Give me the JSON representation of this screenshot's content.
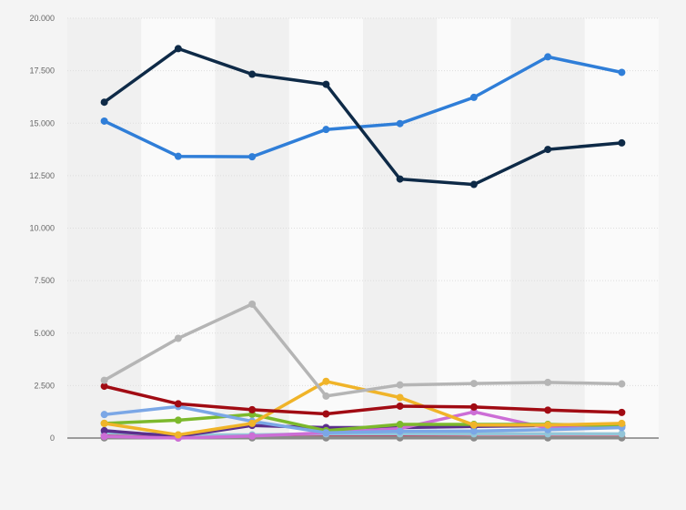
{
  "chart_data": {
    "type": "line",
    "title": "",
    "xlabel": "",
    "ylabel": "",
    "ylim": [
      0,
      20000
    ],
    "y_ticks": [
      0,
      2500,
      5000,
      7500,
      10000,
      12500,
      15000,
      17500,
      20000
    ],
    "y_tick_labels": [
      "0",
      "2.500",
      "5.000",
      "7.500",
      "10.000",
      "12.500",
      "15.000",
      "17.500",
      "20.000"
    ],
    "x_tick_labels": [
      "",
      "",
      "",
      "",
      "",
      "",
      "",
      ""
    ],
    "grid": true,
    "legend": "none",
    "background_bands": true,
    "series": [
      {
        "color": "#0e2a47",
        "values": [
          16000,
          18550,
          17330,
          16850,
          12340,
          12080,
          13750,
          14060
        ]
      },
      {
        "color": "#2f7ed8",
        "values": [
          15100,
          13420,
          13400,
          14700,
          14980,
          16230,
          18160,
          17420
        ]
      },
      {
        "color": "#b5b5b5",
        "values": [
          2750,
          4750,
          6380,
          2000,
          2530,
          2600,
          2650,
          2580
        ]
      },
      {
        "color": "#a10b13",
        "values": [
          2470,
          1630,
          1350,
          1150,
          1520,
          1480,
          1330,
          1220
        ]
      },
      {
        "color": "#f0b429",
        "values": [
          700,
          150,
          700,
          2700,
          1930,
          620,
          620,
          700
        ]
      },
      {
        "color": "#7ba7e6",
        "values": [
          1120,
          1500,
          800,
          250,
          320,
          330,
          400,
          500
        ]
      },
      {
        "color": "#7cb92c",
        "values": [
          700,
          850,
          1130,
          350,
          650,
          650,
          650,
          600
        ]
      },
      {
        "color": "#cc6ed6",
        "values": [
          80,
          0,
          100,
          250,
          450,
          1250,
          470,
          520
        ]
      },
      {
        "color": "#5b2f8c",
        "values": [
          350,
          80,
          600,
          500,
          500,
          550,
          600,
          600
        ]
      },
      {
        "color": "#93c5d8",
        "values": [
          250,
          150,
          150,
          200,
          200,
          200,
          200,
          200
        ]
      },
      {
        "color": "#8a8a8a",
        "values": [
          10,
          10,
          10,
          10,
          10,
          10,
          10,
          10
        ]
      },
      {
        "color": "#c0395a",
        "values": [
          150,
          100,
          50,
          50,
          50,
          40,
          40,
          40
        ]
      }
    ]
  }
}
